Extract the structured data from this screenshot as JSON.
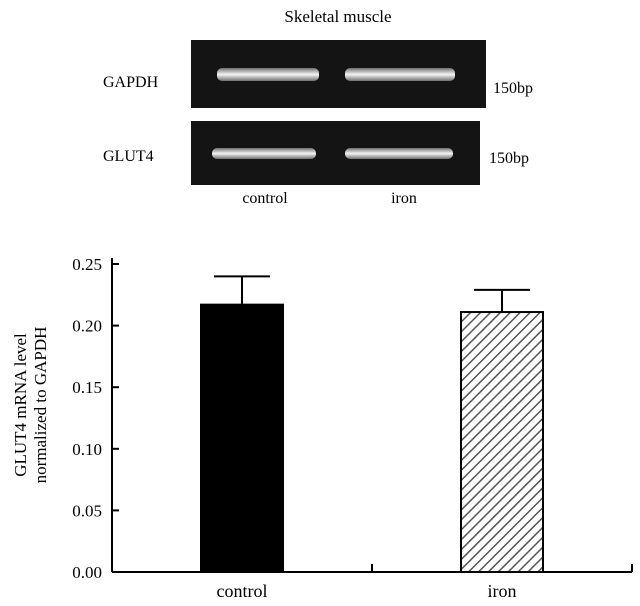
{
  "gel": {
    "title": "Skeletal muscle",
    "rows": [
      {
        "gene": "GAPDH",
        "size": "150bp"
      },
      {
        "gene": "GLUT4",
        "size": "150bp"
      }
    ],
    "lanes": [
      "control",
      "iron"
    ]
  },
  "chart_data": {
    "type": "bar",
    "categories": [
      "control",
      "iron"
    ],
    "values": [
      0.217,
      0.211
    ],
    "error": [
      0.023,
      0.018
    ],
    "ylabel": "GLUT4 mRNA level normalized to GAPDH",
    "ylabel_lines": [
      "GLUT4 mRNA level",
      "normalized to GAPDH"
    ],
    "ylim": [
      0,
      0.25
    ],
    "yticks": [
      "0.00",
      "0.05",
      "0.10",
      "0.15",
      "0.20",
      "0.25"
    ],
    "grid": false,
    "bar_styles": [
      "solid-black",
      "diagonal-hatch"
    ],
    "colors": {
      "bar_fill": "#000000",
      "hatch": "#555555",
      "axis": "#000000"
    }
  }
}
